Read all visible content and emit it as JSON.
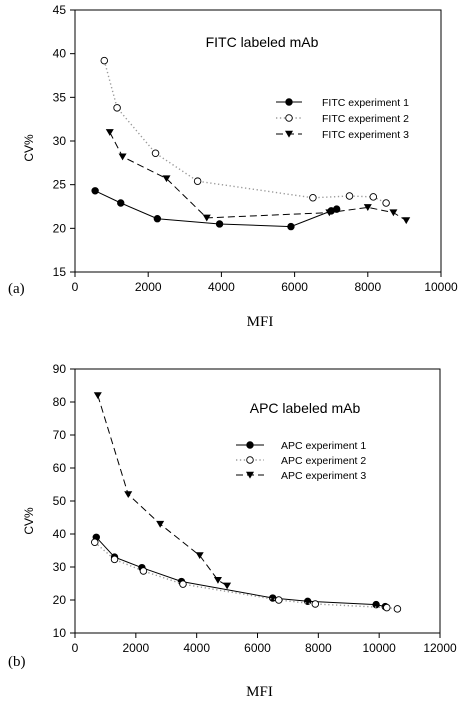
{
  "chart_data": [
    {
      "type": "line",
      "panel_label": "(a)",
      "title": "FITC labeled mAb",
      "xlabel": "MFI",
      "ylabel": "CV%",
      "xlim": [
        0,
        10000
      ],
      "ylim": [
        15,
        45
      ],
      "xticks": [
        0,
        2000,
        4000,
        6000,
        8000,
        10000
      ],
      "yticks": [
        15,
        20,
        25,
        30,
        35,
        40,
        45
      ],
      "grid": false,
      "legend_position": "top-right",
      "series": [
        {
          "name": "FITC experiment 1",
          "style": "solid",
          "marker": "filled-circle",
          "x": [
            550,
            1250,
            2250,
            3950,
            5900,
            7000,
            7150
          ],
          "y": [
            24.3,
            22.9,
            21.1,
            20.5,
            20.2,
            22.0,
            22.2
          ]
        },
        {
          "name": "FITC experiment 2",
          "style": "dotted",
          "marker": "open-circle",
          "x": [
            800,
            1150,
            2200,
            3350,
            6500,
            7500,
            8150,
            8500
          ],
          "y": [
            39.2,
            33.8,
            28.6,
            25.4,
            23.5,
            23.7,
            23.6,
            22.9
          ]
        },
        {
          "name": "FITC  experiment 3",
          "style": "dashed",
          "marker": "filled-triangle-down",
          "x": [
            950,
            1300,
            2500,
            3600,
            6950,
            8000,
            8700,
            9050
          ],
          "y": [
            31.0,
            28.2,
            25.7,
            21.2,
            21.8,
            22.4,
            21.8,
            20.9
          ]
        }
      ]
    },
    {
      "type": "line",
      "panel_label": "(b)",
      "title": "APC labeled mAb",
      "xlabel": "MFI",
      "ylabel": "CV%",
      "xlim": [
        0,
        12000
      ],
      "ylim": [
        10,
        90
      ],
      "xticks": [
        0,
        2000,
        4000,
        6000,
        8000,
        10000,
        12000
      ],
      "yticks": [
        10,
        20,
        30,
        40,
        50,
        60,
        70,
        80,
        90
      ],
      "grid": false,
      "legend_position": "top-right",
      "series": [
        {
          "name": "APC experiment 1",
          "style": "solid",
          "marker": "filled-circle",
          "x": [
            700,
            1300,
            2200,
            3500,
            6500,
            7650,
            9900,
            10200
          ],
          "y": [
            39.0,
            33.0,
            29.8,
            25.6,
            20.6,
            19.6,
            18.6,
            18.0
          ]
        },
        {
          "name": "APC experiment 2",
          "style": "dotted",
          "marker": "open-circle",
          "x": [
            650,
            1300,
            2250,
            3550,
            6700,
            7900,
            10250,
            10600
          ],
          "y": [
            37.5,
            32.3,
            28.8,
            24.8,
            20.0,
            18.8,
            17.7,
            17.3
          ]
        },
        {
          "name": "APC experiment 3",
          "style": "dashed",
          "marker": "filled-triangle-down",
          "x": [
            750,
            1750,
            2800,
            4100,
            4700,
            5000
          ],
          "y": [
            82.0,
            52.0,
            43.0,
            33.5,
            26.0,
            24.3
          ]
        }
      ]
    }
  ]
}
